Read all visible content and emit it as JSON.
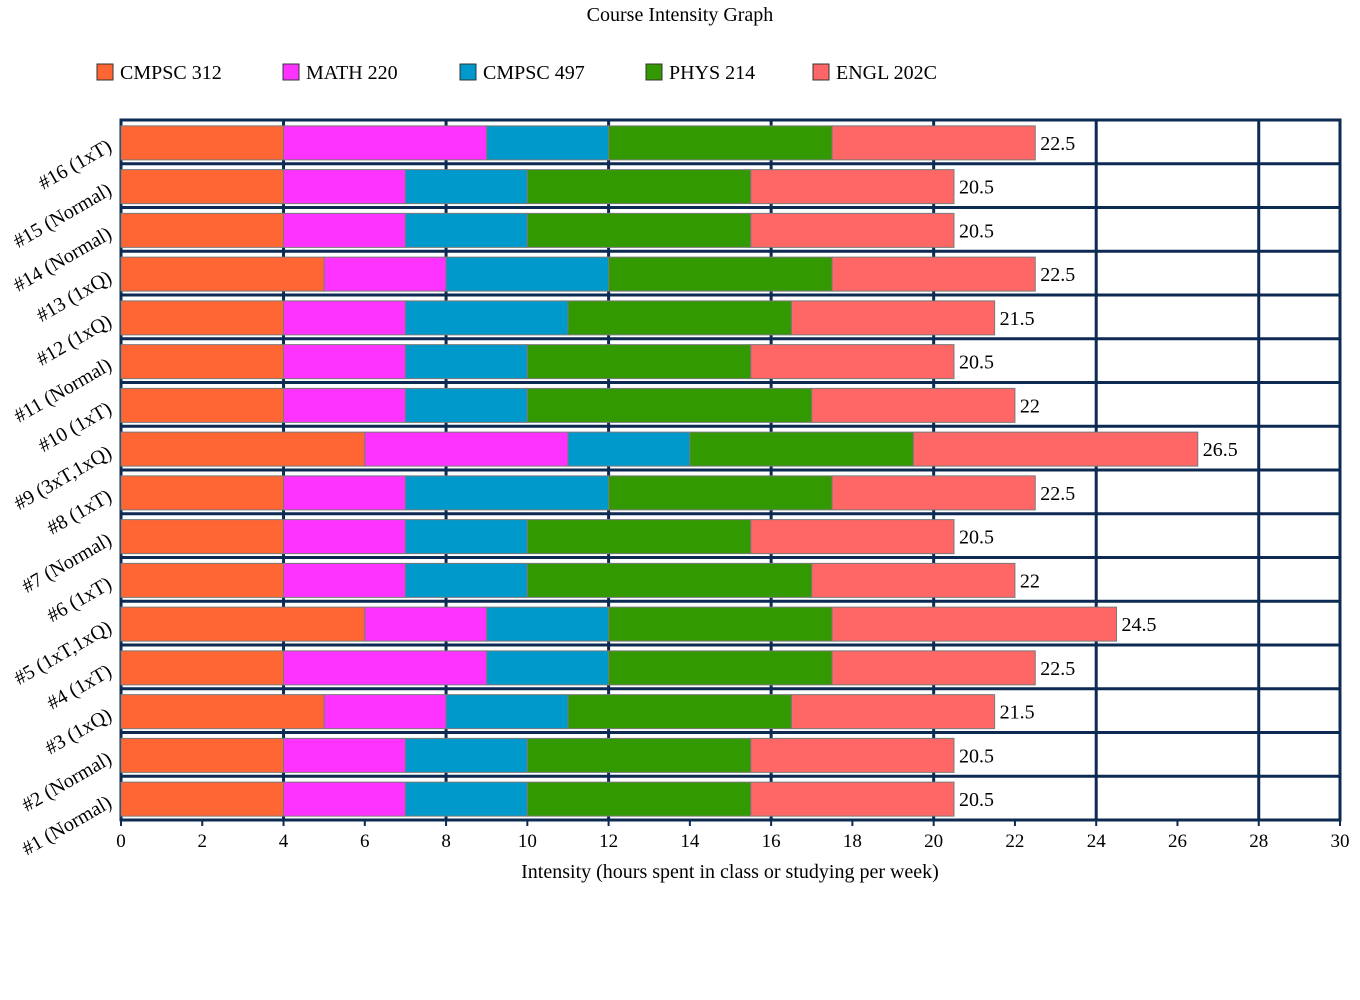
{
  "chart_data": {
    "type": "bar",
    "orientation": "horizontal",
    "stacked": true,
    "title": "Course Intensity Graph",
    "xlabel": "Intensity (hours spent in class or studying per week)",
    "ylabel": "",
    "xlim": [
      0,
      30
    ],
    "x_ticks": [
      "0",
      "2",
      "4",
      "6",
      "8",
      "10",
      "12",
      "14",
      "16",
      "18",
      "20",
      "22",
      "24",
      "26",
      "28",
      "30"
    ],
    "grid": true,
    "legend_position": "top",
    "categories": [
      "#1 (Normal)",
      "#2 (Normal)",
      "#3 (1xQ)",
      "#4 (1xT)",
      "#5 (1xT,1xQ)",
      "#6 (1xT)",
      "#7 (Normal)",
      "#8 (1xT)",
      "#9 (3xT,1xQ)",
      "#10 (1xT)",
      "#11 (Normal)",
      "#12 (1xQ)",
      "#13 (1xQ)",
      "#14 (Normal)",
      "#15 (Normal)",
      "#16  (1xT)"
    ],
    "series": [
      {
        "name": "CMPSC 312",
        "color": "#ff6633",
        "values": [
          4,
          4,
          5,
          4,
          6,
          4,
          4,
          4,
          6,
          4,
          4,
          4,
          5,
          4,
          4,
          4
        ]
      },
      {
        "name": "MATH 220",
        "color": "#ff33ff",
        "values": [
          3,
          3,
          3,
          5,
          3,
          3,
          3,
          3,
          5,
          3,
          3,
          3,
          3,
          3,
          3,
          5
        ]
      },
      {
        "name": "CMPSC 497",
        "color": "#0099cc",
        "values": [
          3,
          3,
          3,
          3,
          3,
          3,
          3,
          5,
          3,
          3,
          3,
          4,
          4,
          3,
          3,
          3
        ]
      },
      {
        "name": "PHYS 214",
        "color": "#339900",
        "values": [
          5.5,
          5.5,
          5.5,
          5.5,
          5.5,
          7,
          5.5,
          5.5,
          5.5,
          7,
          5.5,
          5.5,
          5.5,
          5.5,
          5.5,
          5.5
        ]
      },
      {
        "name": "ENGL 202C",
        "color": "#ff6666",
        "values": [
          5,
          5,
          5,
          5,
          7,
          5,
          5,
          5,
          7,
          5,
          5,
          5,
          5,
          5,
          5,
          5
        ]
      }
    ],
    "totals": [
      "20.5",
      "20.5",
      "21.5",
      "22.5",
      "24.5",
      "22",
      "20.5",
      "22.5",
      "26.5",
      "22",
      "20.5",
      "21.5",
      "22.5",
      "20.5",
      "20.5",
      "22.5"
    ],
    "colors": {
      "grid": "#0d2a52",
      "bar_border": "#7a7a7a"
    }
  }
}
